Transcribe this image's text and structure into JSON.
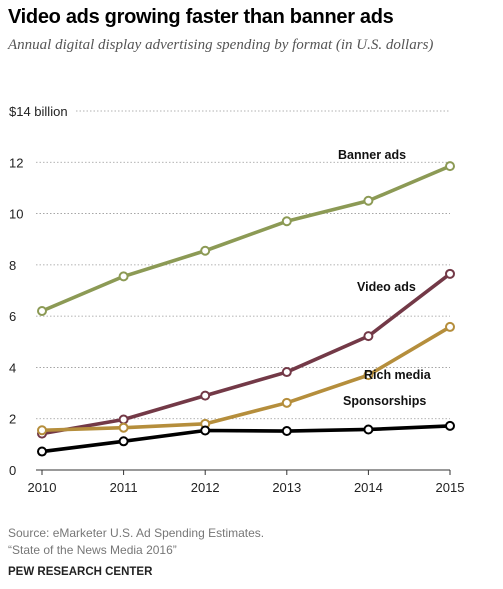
{
  "chart_data": {
    "type": "line",
    "title": "Video ads growing faster than banner ads",
    "subtitle": "Annual digital display advertising spending by format (in U.S. dollars)",
    "x": [
      2010,
      2011,
      2012,
      2013,
      2014,
      2015
    ],
    "ylim": [
      0,
      14
    ],
    "y_ticks": [
      0,
      2,
      4,
      6,
      8,
      10,
      12,
      14
    ],
    "y_tick_labels": [
      "0",
      "2",
      "4",
      "6",
      "8",
      "10",
      "12",
      "$14 billion"
    ],
    "grid": true,
    "series": [
      {
        "name": "Banner ads",
        "color": "#8c9a55",
        "values": [
          6.2,
          7.55,
          8.55,
          9.7,
          10.5,
          11.85
        ]
      },
      {
        "name": "Video ads",
        "color": "#733947",
        "values": [
          1.42,
          1.97,
          2.9,
          3.82,
          5.22,
          7.65
        ]
      },
      {
        "name": "Rich media",
        "color": "#b58e3c",
        "values": [
          1.55,
          1.65,
          1.8,
          2.62,
          3.7,
          5.58
        ]
      },
      {
        "name": "Sponsorships",
        "color": "#000000",
        "values": [
          0.72,
          1.12,
          1.54,
          1.52,
          1.58,
          1.72
        ]
      }
    ]
  },
  "source_line1": "Source: eMarketer U.S. Ad Spending Estimates.",
  "source_line2": "“State of the News Media 2016”",
  "organization": "PEW RESEARCH CENTER"
}
